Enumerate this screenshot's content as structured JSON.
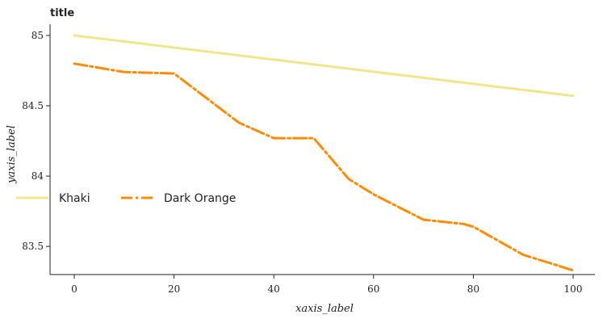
{
  "chart_data": {
    "type": "line",
    "title": "title",
    "xlabel": "xaxis_label",
    "ylabel": "yaxis_label",
    "xlim": [
      0,
      100
    ],
    "ylim": [
      83.3,
      85.08
    ],
    "xticks": [
      0,
      20,
      40,
      60,
      80,
      100
    ],
    "yticks": [
      83.5,
      84,
      84.5,
      85
    ],
    "ytick_labels": [
      "83.5",
      "84",
      "84.5",
      "85"
    ],
    "grid": false,
    "legend_position": "bottom",
    "series": [
      {
        "name": "Khaki",
        "color": "#f0e68c",
        "dash": "solid",
        "x": [
          0,
          100
        ],
        "y": [
          85.0,
          84.57
        ]
      },
      {
        "name": "Dark Orange",
        "color": "#ff8c00",
        "dash": "dashdot",
        "x": [
          0,
          10,
          20,
          33,
          40,
          48,
          55,
          60,
          70,
          78,
          80,
          90,
          100
        ],
        "y": [
          84.8,
          84.74,
          84.73,
          84.38,
          84.27,
          84.27,
          83.98,
          83.87,
          83.69,
          83.66,
          83.64,
          83.44,
          83.33
        ]
      }
    ]
  }
}
